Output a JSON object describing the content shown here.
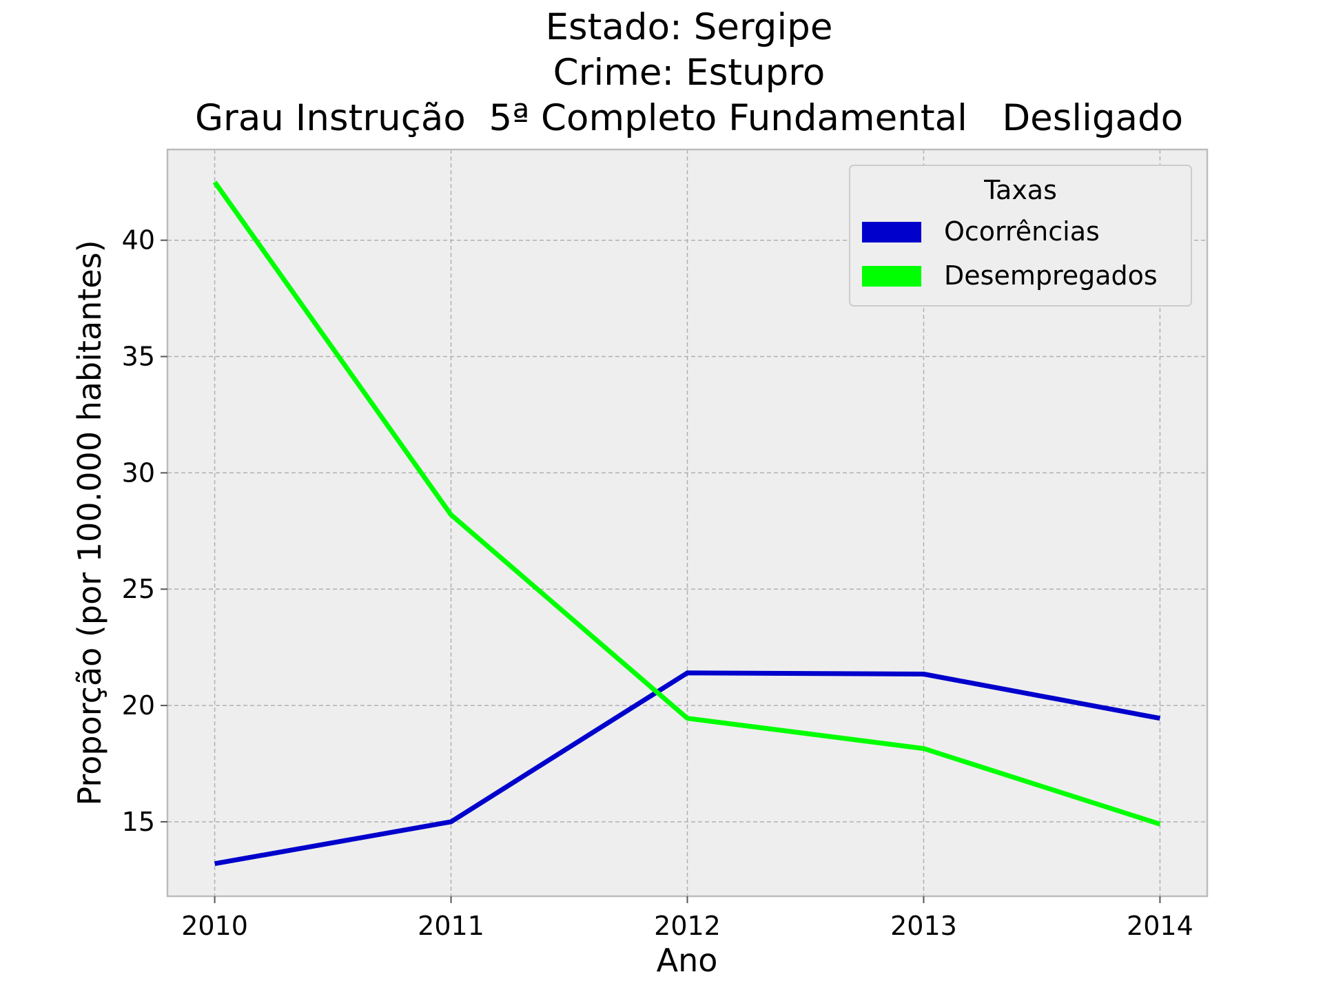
{
  "chart_data": {
    "type": "line",
    "title_lines": [
      "Estado: Sergipe",
      "Crime: Estupro",
      "Grau Instrução  5ª Completo Fundamental   Desligado"
    ],
    "xlabel": "Ano",
    "ylabel": "Proporção (por 100.000 habitantes)",
    "x": [
      2010,
      2011,
      2012,
      2013,
      2014
    ],
    "x_tick_labels": [
      "2010",
      "2011",
      "2012",
      "2013",
      "2014"
    ],
    "xlim": [
      2009.8,
      2014.2
    ],
    "y_ticks": [
      15,
      20,
      25,
      30,
      35,
      40
    ],
    "y_tick_labels": [
      "15",
      "20",
      "25",
      "30",
      "35",
      "40"
    ],
    "ylim": [
      11.8,
      43.9
    ],
    "grid": true,
    "legend": {
      "title": "Taxas",
      "placement": "upper-right"
    },
    "series": [
      {
        "name": "Ocorrências",
        "color": "#0000cc",
        "values": [
          13.2,
          15.0,
          21.4,
          21.35,
          19.45
        ]
      },
      {
        "name": "Desempregados",
        "color": "#00ff00",
        "values": [
          42.5,
          28.2,
          19.45,
          18.15,
          14.9
        ]
      }
    ]
  }
}
